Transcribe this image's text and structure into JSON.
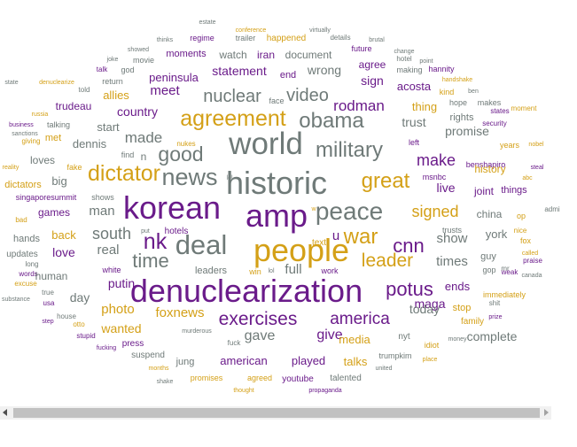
{
  "palette": {
    "purple": "#6a1b8a",
    "gold": "#d4a017",
    "gray": "#6f7a78"
  },
  "words": [
    {
      "text": "estate",
      "c": "gray",
      "s": 7
    },
    {
      "text": "conference",
      "c": "gold",
      "s": 7
    },
    {
      "text": "virtually",
      "c": "gray",
      "s": 7
    },
    {
      "text": "thinks",
      "c": "gray",
      "s": 7
    },
    {
      "text": "regime",
      "c": "purple",
      "s": 9
    },
    {
      "text": "trailer",
      "c": "gray",
      "s": 9
    },
    {
      "text": "happened",
      "c": "gold",
      "s": 10
    },
    {
      "text": "details",
      "c": "gray",
      "s": 8
    },
    {
      "text": "brutal",
      "c": "gray",
      "s": 7
    },
    {
      "text": "showed",
      "c": "gray",
      "s": 7
    },
    {
      "text": "change",
      "c": "gray",
      "s": 7
    },
    {
      "text": "future",
      "c": "purple",
      "s": 9
    },
    {
      "text": "point",
      "c": "gray",
      "s": 7
    },
    {
      "text": "moments",
      "c": "purple",
      "s": 11
    },
    {
      "text": "watch",
      "c": "gray",
      "s": 12
    },
    {
      "text": "iran",
      "c": "purple",
      "s": 12
    },
    {
      "text": "document",
      "c": "gray",
      "s": 12
    },
    {
      "text": "hotel",
      "c": "gray",
      "s": 8
    },
    {
      "text": "joke",
      "c": "gray",
      "s": 7
    },
    {
      "text": "movie",
      "c": "gray",
      "s": 9
    },
    {
      "text": "agree",
      "c": "purple",
      "s": 12
    },
    {
      "text": "god",
      "c": "gray",
      "s": 9
    },
    {
      "text": "talk",
      "c": "purple",
      "s": 8
    },
    {
      "text": "end",
      "c": "purple",
      "s": 11
    },
    {
      "text": "wrong",
      "c": "gray",
      "s": 14
    },
    {
      "text": "making",
      "c": "gray",
      "s": 9
    },
    {
      "text": "hannity",
      "c": "purple",
      "s": 9
    },
    {
      "text": "statement",
      "c": "purple",
      "s": 14
    },
    {
      "text": "return",
      "c": "gray",
      "s": 9
    },
    {
      "text": "peninsula",
      "c": "purple",
      "s": 13
    },
    {
      "text": "sign",
      "c": "purple",
      "s": 14
    },
    {
      "text": "acosta",
      "c": "purple",
      "s": 13
    },
    {
      "text": "handshake",
      "c": "gold",
      "s": 7
    },
    {
      "text": "denuclearize",
      "c": "gold",
      "s": 7
    },
    {
      "text": "state",
      "c": "gray",
      "s": 7
    },
    {
      "text": "told",
      "c": "gray",
      "s": 8
    },
    {
      "text": "ben",
      "c": "gray",
      "s": 7
    },
    {
      "text": "kind",
      "c": "gold",
      "s": 9
    },
    {
      "text": "hope",
      "c": "gray",
      "s": 9
    },
    {
      "text": "makes",
      "c": "gray",
      "s": 9
    },
    {
      "text": "face",
      "c": "gray",
      "s": 9
    },
    {
      "text": "allies",
      "c": "gold",
      "s": 13
    },
    {
      "text": "meet",
      "c": "purple",
      "s": 15
    },
    {
      "text": "nuclear",
      "c": "gray",
      "s": 20
    },
    {
      "text": "video",
      "c": "gray",
      "s": 20
    },
    {
      "text": "trudeau",
      "c": "purple",
      "s": 12
    },
    {
      "text": "russia",
      "c": "gold",
      "s": 7
    },
    {
      "text": "thing",
      "c": "gold",
      "s": 13
    },
    {
      "text": "states",
      "c": "purple",
      "s": 8
    },
    {
      "text": "rodman",
      "c": "purple",
      "s": 17
    },
    {
      "text": "business",
      "c": "purple",
      "s": 7
    },
    {
      "text": "moment",
      "c": "gold",
      "s": 8
    },
    {
      "text": "security",
      "c": "purple",
      "s": 8
    },
    {
      "text": "sanctions",
      "c": "gray",
      "s": 7
    },
    {
      "text": "agreement",
      "c": "gold",
      "s": 25
    },
    {
      "text": "country",
      "c": "purple",
      "s": 14
    },
    {
      "text": "obama",
      "c": "gray",
      "s": 24
    },
    {
      "text": "trust",
      "c": "gray",
      "s": 14
    },
    {
      "text": "rights",
      "c": "gray",
      "s": 11
    },
    {
      "text": "talking",
      "c": "gray",
      "s": 9
    },
    {
      "text": "start",
      "c": "gray",
      "s": 13
    },
    {
      "text": "promise",
      "c": "gray",
      "s": 14
    },
    {
      "text": "nobel",
      "c": "gold",
      "s": 7
    },
    {
      "text": "giving",
      "c": "gold",
      "s": 8
    },
    {
      "text": "met",
      "c": "gold",
      "s": 11
    },
    {
      "text": "made",
      "c": "gray",
      "s": 17
    },
    {
      "text": "nukes",
      "c": "gold",
      "s": 8
    },
    {
      "text": "years",
      "c": "gold",
      "s": 9
    },
    {
      "text": "left",
      "c": "purple",
      "s": 9
    },
    {
      "text": "dennis",
      "c": "gray",
      "s": 13
    },
    {
      "text": "world",
      "c": "gray",
      "s": 35
    },
    {
      "text": "military",
      "c": "gray",
      "s": 24
    },
    {
      "text": "find",
      "c": "gray",
      "s": 9
    },
    {
      "text": "n",
      "c": "gray",
      "s": 12
    },
    {
      "text": "loves",
      "c": "gray",
      "s": 12
    },
    {
      "text": "good",
      "c": "gray",
      "s": 23
    },
    {
      "text": "reality",
      "c": "gold",
      "s": 7
    },
    {
      "text": "benshapiro",
      "c": "purple",
      "s": 9
    },
    {
      "text": "steal",
      "c": "purple",
      "s": 7
    },
    {
      "text": "make",
      "c": "purple",
      "s": 18
    },
    {
      "text": "fake",
      "c": "gold",
      "s": 9
    },
    {
      "text": "history",
      "c": "gold",
      "s": 12
    },
    {
      "text": "msnbc",
      "c": "purple",
      "s": 9
    },
    {
      "text": "abc",
      "c": "gold",
      "s": 7
    },
    {
      "text": "dictator",
      "c": "gold",
      "s": 25
    },
    {
      "text": "news",
      "c": "gray",
      "s": 27
    },
    {
      "text": "historic",
      "c": "gray",
      "s": 36
    },
    {
      "text": "big",
      "c": "gray",
      "s": 13
    },
    {
      "text": "great",
      "c": "gold",
      "s": 24
    },
    {
      "text": "live",
      "c": "purple",
      "s": 14
    },
    {
      "text": "dictators",
      "c": "gold",
      "s": 11
    },
    {
      "text": "things",
      "c": "purple",
      "s": 11
    },
    {
      "text": "singaporesummit",
      "c": "purple",
      "s": 9
    },
    {
      "text": "joint",
      "c": "purple",
      "s": 12
    },
    {
      "text": "shows",
      "c": "gray",
      "s": 9
    },
    {
      "text": "korean",
      "c": "purple",
      "s": 36
    },
    {
      "text": "lol",
      "c": "gray",
      "s": 7
    },
    {
      "text": "admi",
      "c": "gray",
      "s": 8
    },
    {
      "text": "games",
      "c": "purple",
      "s": 12
    },
    {
      "text": "man",
      "c": "gray",
      "s": 15
    },
    {
      "text": "bad",
      "c": "gold",
      "s": 8
    },
    {
      "text": "w",
      "c": "gold",
      "s": 7
    },
    {
      "text": "peace",
      "c": "gray",
      "s": 28
    },
    {
      "text": "signed",
      "c": "gold",
      "s": 18
    },
    {
      "text": "china",
      "c": "gray",
      "s": 12
    },
    {
      "text": "op",
      "c": "gold",
      "s": 9
    },
    {
      "text": "amp",
      "c": "purple",
      "s": 36
    },
    {
      "text": "trusts",
      "c": "gray",
      "s": 9
    },
    {
      "text": "nice",
      "c": "gold",
      "s": 8
    },
    {
      "text": "hands",
      "c": "gray",
      "s": 11
    },
    {
      "text": "south",
      "c": "gray",
      "s": 18
    },
    {
      "text": "put",
      "c": "gray",
      "s": 7
    },
    {
      "text": "back",
      "c": "gold",
      "s": 13
    },
    {
      "text": "york",
      "c": "gray",
      "s": 13
    },
    {
      "text": "war",
      "c": "gold",
      "s": 24
    },
    {
      "text": "fox",
      "c": "gold",
      "s": 9
    },
    {
      "text": "show",
      "c": "gray",
      "s": 15
    },
    {
      "text": "updates",
      "c": "gray",
      "s": 10
    },
    {
      "text": "nk",
      "c": "purple",
      "s": 25
    },
    {
      "text": "hotels",
      "c": "purple",
      "s": 10
    },
    {
      "text": "text",
      "c": "gold",
      "s": 10
    },
    {
      "text": "people",
      "c": "gold",
      "s": 36
    },
    {
      "text": "deal",
      "c": "gray",
      "s": 31
    },
    {
      "text": "cnn",
      "c": "purple",
      "s": 22
    },
    {
      "text": "guy",
      "c": "gray",
      "s": 11
    },
    {
      "text": "called",
      "c": "gold",
      "s": 7
    },
    {
      "text": "love",
      "c": "purple",
      "s": 14
    },
    {
      "text": "real",
      "c": "gray",
      "s": 15
    },
    {
      "text": "u",
      "c": "purple",
      "s": 15
    },
    {
      "text": "leader",
      "c": "gold",
      "s": 21
    },
    {
      "text": "mr",
      "c": "gray",
      "s": 8
    },
    {
      "text": "praise",
      "c": "purple",
      "s": 8
    },
    {
      "text": "long",
      "c": "gray",
      "s": 8
    },
    {
      "text": "words",
      "c": "purple",
      "s": 8
    },
    {
      "text": "time",
      "c": "gray",
      "s": 22
    },
    {
      "text": "times",
      "c": "gray",
      "s": 15
    },
    {
      "text": "human",
      "c": "gray",
      "s": 12
    },
    {
      "text": "full",
      "c": "gray",
      "s": 15
    },
    {
      "text": "gop",
      "c": "gray",
      "s": 9
    },
    {
      "text": "weak",
      "c": "purple",
      "s": 8
    },
    {
      "text": "canada",
      "c": "gray",
      "s": 7
    },
    {
      "text": "white",
      "c": "purple",
      "s": 9
    },
    {
      "text": "leaders",
      "c": "gray",
      "s": 11
    },
    {
      "text": "win",
      "c": "gold",
      "s": 9
    },
    {
      "text": "lol",
      "c": "gray",
      "s": 7
    },
    {
      "text": "work",
      "c": "purple",
      "s": 9
    },
    {
      "text": "excuse",
      "c": "gold",
      "s": 8
    },
    {
      "text": "putin",
      "c": "purple",
      "s": 14
    },
    {
      "text": "denuclearization",
      "c": "purple",
      "s": 36
    },
    {
      "text": "potus",
      "c": "purple",
      "s": 22
    },
    {
      "text": "ends",
      "c": "purple",
      "s": 13
    },
    {
      "text": "immediately",
      "c": "gold",
      "s": 9
    },
    {
      "text": "true",
      "c": "gray",
      "s": 8
    },
    {
      "text": "usa",
      "c": "purple",
      "s": 8
    },
    {
      "text": "day",
      "c": "gray",
      "s": 14
    },
    {
      "text": "substance",
      "c": "gray",
      "s": 7
    },
    {
      "text": "maga",
      "c": "purple",
      "s": 14
    },
    {
      "text": "shit",
      "c": "gray",
      "s": 8
    },
    {
      "text": "photo",
      "c": "gold",
      "s": 15
    },
    {
      "text": "today",
      "c": "gray",
      "s": 14
    },
    {
      "text": "stop",
      "c": "gold",
      "s": 11
    },
    {
      "text": "house",
      "c": "gray",
      "s": 8
    },
    {
      "text": "foxnews",
      "c": "gold",
      "s": 15
    },
    {
      "text": "exercises",
      "c": "purple",
      "s": 21
    },
    {
      "text": "america",
      "c": "purple",
      "s": 19
    },
    {
      "text": "step",
      "c": "purple",
      "s": 7
    },
    {
      "text": "prize",
      "c": "purple",
      "s": 7
    },
    {
      "text": "otto",
      "c": "gold",
      "s": 8
    },
    {
      "text": "family",
      "c": "gold",
      "s": 10
    },
    {
      "text": "wanted",
      "c": "gold",
      "s": 14
    },
    {
      "text": "stupid",
      "c": "purple",
      "s": 8
    },
    {
      "text": "gave",
      "c": "gray",
      "s": 16
    },
    {
      "text": "give",
      "c": "purple",
      "s": 16
    },
    {
      "text": "nyt",
      "c": "gray",
      "s": 10
    },
    {
      "text": "complete",
      "c": "gray",
      "s": 14
    },
    {
      "text": "murderous",
      "c": "gray",
      "s": 7
    },
    {
      "text": "money",
      "c": "gray",
      "s": 7
    },
    {
      "text": "media",
      "c": "gold",
      "s": 13
    },
    {
      "text": "idiot",
      "c": "gold",
      "s": 9
    },
    {
      "text": "fucking",
      "c": "purple",
      "s": 7
    },
    {
      "text": "press",
      "c": "purple",
      "s": 10
    },
    {
      "text": "fuck",
      "c": "gray",
      "s": 8
    },
    {
      "text": "suspend",
      "c": "gray",
      "s": 10
    },
    {
      "text": "trumpkim",
      "c": "gray",
      "s": 9
    },
    {
      "text": "place",
      "c": "gold",
      "s": 7
    },
    {
      "text": "american",
      "c": "purple",
      "s": 13
    },
    {
      "text": "played",
      "c": "purple",
      "s": 13
    },
    {
      "text": "talks",
      "c": "gold",
      "s": 13
    },
    {
      "text": "jung",
      "c": "gray",
      "s": 11
    },
    {
      "text": "months",
      "c": "gold",
      "s": 7
    },
    {
      "text": "united",
      "c": "gray",
      "s": 7
    },
    {
      "text": "promises",
      "c": "gold",
      "s": 9
    },
    {
      "text": "agreed",
      "c": "gold",
      "s": 9
    },
    {
      "text": "youtube",
      "c": "purple",
      "s": 10
    },
    {
      "text": "talented",
      "c": "gray",
      "s": 10
    },
    {
      "text": "shake",
      "c": "gray",
      "s": 7
    },
    {
      "text": "thought",
      "c": "gold",
      "s": 7
    },
    {
      "text": "propaganda",
      "c": "purple",
      "s": 7
    }
  ],
  "scrollbar": {
    "left_arrow": "scroll-left-arrow-icon",
    "right_arrow": "scroll-right-arrow-icon"
  }
}
